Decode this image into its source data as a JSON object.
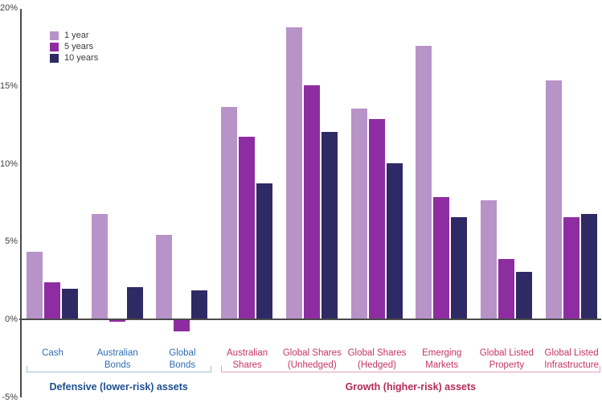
{
  "chart_data": {
    "type": "bar",
    "ylim": [
      -5,
      20
    ],
    "grid": false,
    "legend_position": "top-left",
    "axis_color": "#4a4a4a",
    "tick_label_color": "#3f3f3f",
    "yticks": [
      {
        "value": 20,
        "label": "20%"
      },
      {
        "value": 15,
        "label": "15%"
      },
      {
        "value": 10,
        "label": "10%"
      },
      {
        "value": 5,
        "label": "5%"
      },
      {
        "value": 0,
        "label": "0%"
      },
      {
        "value": -5,
        "label": "-5%"
      }
    ],
    "categories": [
      "Cash",
      "Australian\nBonds",
      "Global\nBonds",
      "Australian\nShares",
      "Global Shares\n(Unhedged)",
      "Global Shares\n(Hedged)",
      "Emerging\nMarkets",
      "Global Listed\nProperty",
      "Global Listed\nInfrastructure"
    ],
    "series": [
      {
        "name": "1 year",
        "color": "#b893c7",
        "values": [
          4.3,
          6.7,
          5.4,
          13.6,
          18.7,
          13.5,
          17.5,
          7.6,
          15.3
        ]
      },
      {
        "name": "5 years",
        "color": "#8e2da2",
        "values": [
          2.3,
          -0.1,
          -0.7,
          11.7,
          15.0,
          12.8,
          7.8,
          3.8,
          6.5
        ]
      },
      {
        "name": "10 years",
        "color": "#2e2a63",
        "values": [
          1.9,
          2.0,
          1.8,
          8.7,
          12.0,
          10.0,
          6.5,
          3.0,
          6.7
        ]
      }
    ],
    "sections": [
      {
        "label": "Defensive (lower-risk) assets",
        "first_category": 0,
        "last_category": 2,
        "title_color": "#1d4f91",
        "category_label_color": "#2f6eb5",
        "bracket_color": "#a3bcd8"
      },
      {
        "label": "Growth (higher-risk) assets",
        "first_category": 3,
        "last_category": 8,
        "title_color": "#b62a57",
        "category_label_color": "#c43563",
        "bracket_color": "#e2a0b2"
      }
    ]
  }
}
